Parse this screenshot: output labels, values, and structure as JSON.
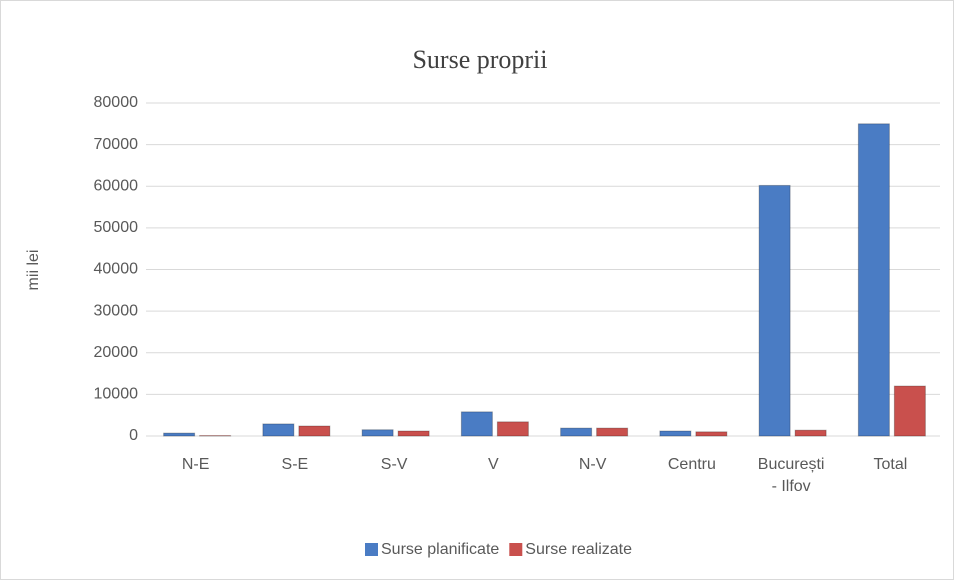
{
  "chart_data": {
    "type": "bar",
    "title": "Surse proprii",
    "y_label": "mii lei",
    "categories": [
      "N-E",
      "S-E",
      "S-V",
      "V",
      "N-V",
      "Centru",
      "București - Ilfov",
      "Total"
    ],
    "series": [
      {
        "name": "Surse planificate",
        "color": "#4a7cc4",
        "values": [
          700,
          2900,
          1500,
          5800,
          1900,
          1200,
          60200,
          75000
        ]
      },
      {
        "name": "Surse realizate",
        "color": "#c9504d",
        "values": [
          100,
          2400,
          1200,
          3400,
          1900,
          1000,
          1400,
          12000
        ]
      }
    ],
    "ylim": [
      0,
      80000
    ],
    "yticks": [
      0,
      10000,
      20000,
      30000,
      40000,
      50000,
      60000,
      70000,
      80000
    ],
    "grid": true,
    "legend": "bottom"
  }
}
